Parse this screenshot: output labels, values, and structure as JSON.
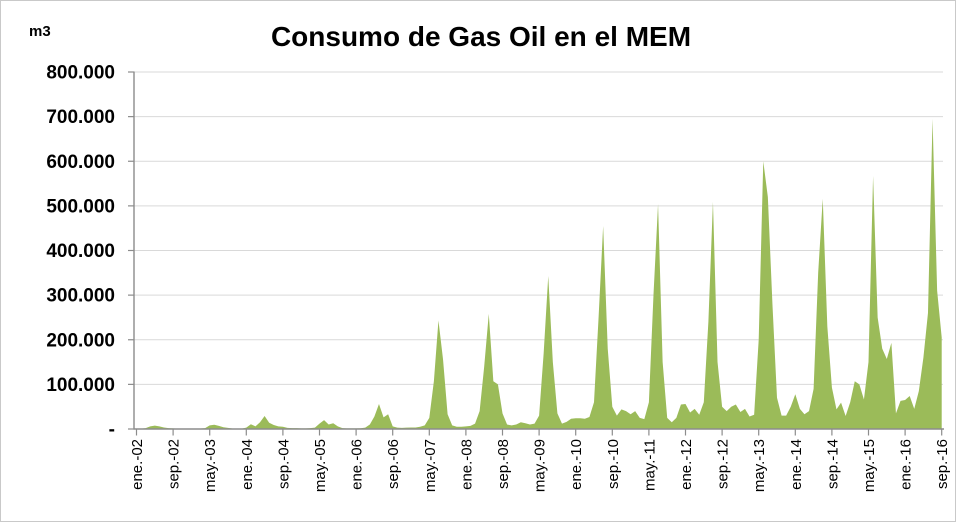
{
  "title": "Consumo de Gas Oil en el MEM",
  "y_axis": {
    "unit_label": "m3",
    "min": 0,
    "max": 800000,
    "interval": 100000,
    "tick_labels": [
      "-",
      "100.000",
      "200.000",
      "300.000",
      "400.000",
      "500.000",
      "600.000",
      "700.000",
      "800.000"
    ]
  },
  "x_axis": {
    "tick_labels": [
      "ene.-02",
      "sep.-02",
      "may.-03",
      "ene.-04",
      "sep.-04",
      "may.-05",
      "ene.-06",
      "sep.-06",
      "may.-07",
      "ene.-08",
      "sep.-08",
      "may.-09",
      "ene.-10",
      "sep.-10",
      "may.-11",
      "ene.-12",
      "sep.-12",
      "may.-13",
      "ene.-14",
      "sep.-14",
      "may.-15",
      "ene.-16",
      "sep.-16"
    ],
    "tick_step_months": 8
  },
  "chart_data": {
    "type": "area",
    "title": "Consumo de Gas Oil en el MEM",
    "ylabel": "m3",
    "xlabel": "",
    "legend": "none",
    "grid": true,
    "fill_color": "#9BBB59",
    "axis_color": "#8C8C8C",
    "gridline_color": "#D9D9D9",
    "text_color": "#000000",
    "ylim": [
      0,
      800000
    ],
    "y_tick_interval": 100000,
    "y_tick_labels": [
      "-",
      "100.000",
      "200.000",
      "300.000",
      "400.000",
      "500.000",
      "600.000",
      "700.000",
      "800.000"
    ],
    "x_tick_labels": [
      "ene.-02",
      "sep.-02",
      "may.-03",
      "ene.-04",
      "sep.-04",
      "may.-05",
      "ene.-06",
      "sep.-06",
      "may.-07",
      "ene.-08",
      "sep.-08",
      "may.-09",
      "ene.-10",
      "sep.-10",
      "may.-11",
      "ene.-12",
      "sep.-12",
      "may.-13",
      "ene.-14",
      "sep.-14",
      "may.-15",
      "ene.-16",
      "sep.-16"
    ],
    "x_tick_step_months": 8,
    "x_start": "ene.-02",
    "x_end": "sep.-16",
    "x_frequency": "monthly",
    "annual_peaks_m3": {
      "2007": 243000,
      "2008": 258000,
      "2009": 343000,
      "2010": 455000,
      "2011": 504000,
      "2012": 509000,
      "2013": 600000,
      "2014": 516000,
      "2015": 567000,
      "2016": 695000
    },
    "values": [
      500,
      800,
      2000,
      6000,
      7500,
      6000,
      3500,
      2000,
      1500,
      800,
      500,
      500,
      500,
      500,
      1000,
      2000,
      8000,
      9500,
      7000,
      4000,
      2500,
      1200,
      800,
      800,
      3000,
      10500,
      6000,
      15000,
      29000,
      14000,
      9000,
      6000,
      5000,
      2500,
      2000,
      2000,
      1500,
      1500,
      2000,
      3000,
      12000,
      20000,
      10000,
      13000,
      6000,
      2000,
      1500,
      1500,
      1500,
      1800,
      3000,
      10000,
      28000,
      56000,
      26000,
      33000,
      6000,
      3000,
      2500,
      3200,
      3500,
      3500,
      5000,
      8000,
      25000,
      107000,
      243000,
      156000,
      33000,
      8000,
      5000,
      5000,
      6000,
      7000,
      12000,
      40000,
      140000,
      258000,
      107000,
      100000,
      35000,
      10000,
      8000,
      10000,
      15000,
      13000,
      10000,
      12000,
      30000,
      170000,
      343000,
      150000,
      35000,
      12000,
      16000,
      23000,
      24000,
      24000,
      23000,
      27000,
      60000,
      250000,
      455000,
      180000,
      50000,
      30000,
      44000,
      40000,
      33000,
      40000,
      25000,
      22000,
      60000,
      300000,
      504000,
      150000,
      25000,
      15000,
      25000,
      55000,
      56000,
      37000,
      45000,
      32000,
      60000,
      240000,
      509000,
      150000,
      50000,
      40000,
      50000,
      55000,
      38000,
      45000,
      28000,
      32000,
      200000,
      600000,
      520000,
      280000,
      70000,
      30000,
      30000,
      50000,
      78000,
      45000,
      33000,
      40000,
      90000,
      350000,
      516000,
      230000,
      93000,
      44000,
      59000,
      29000,
      60000,
      107000,
      100000,
      66000,
      150000,
      567000,
      250000,
      180000,
      157000,
      193000,
      35000,
      63000,
      65000,
      74000,
      45000,
      85000,
      160000,
      260000,
      695000,
      310000,
      205000
    ]
  }
}
